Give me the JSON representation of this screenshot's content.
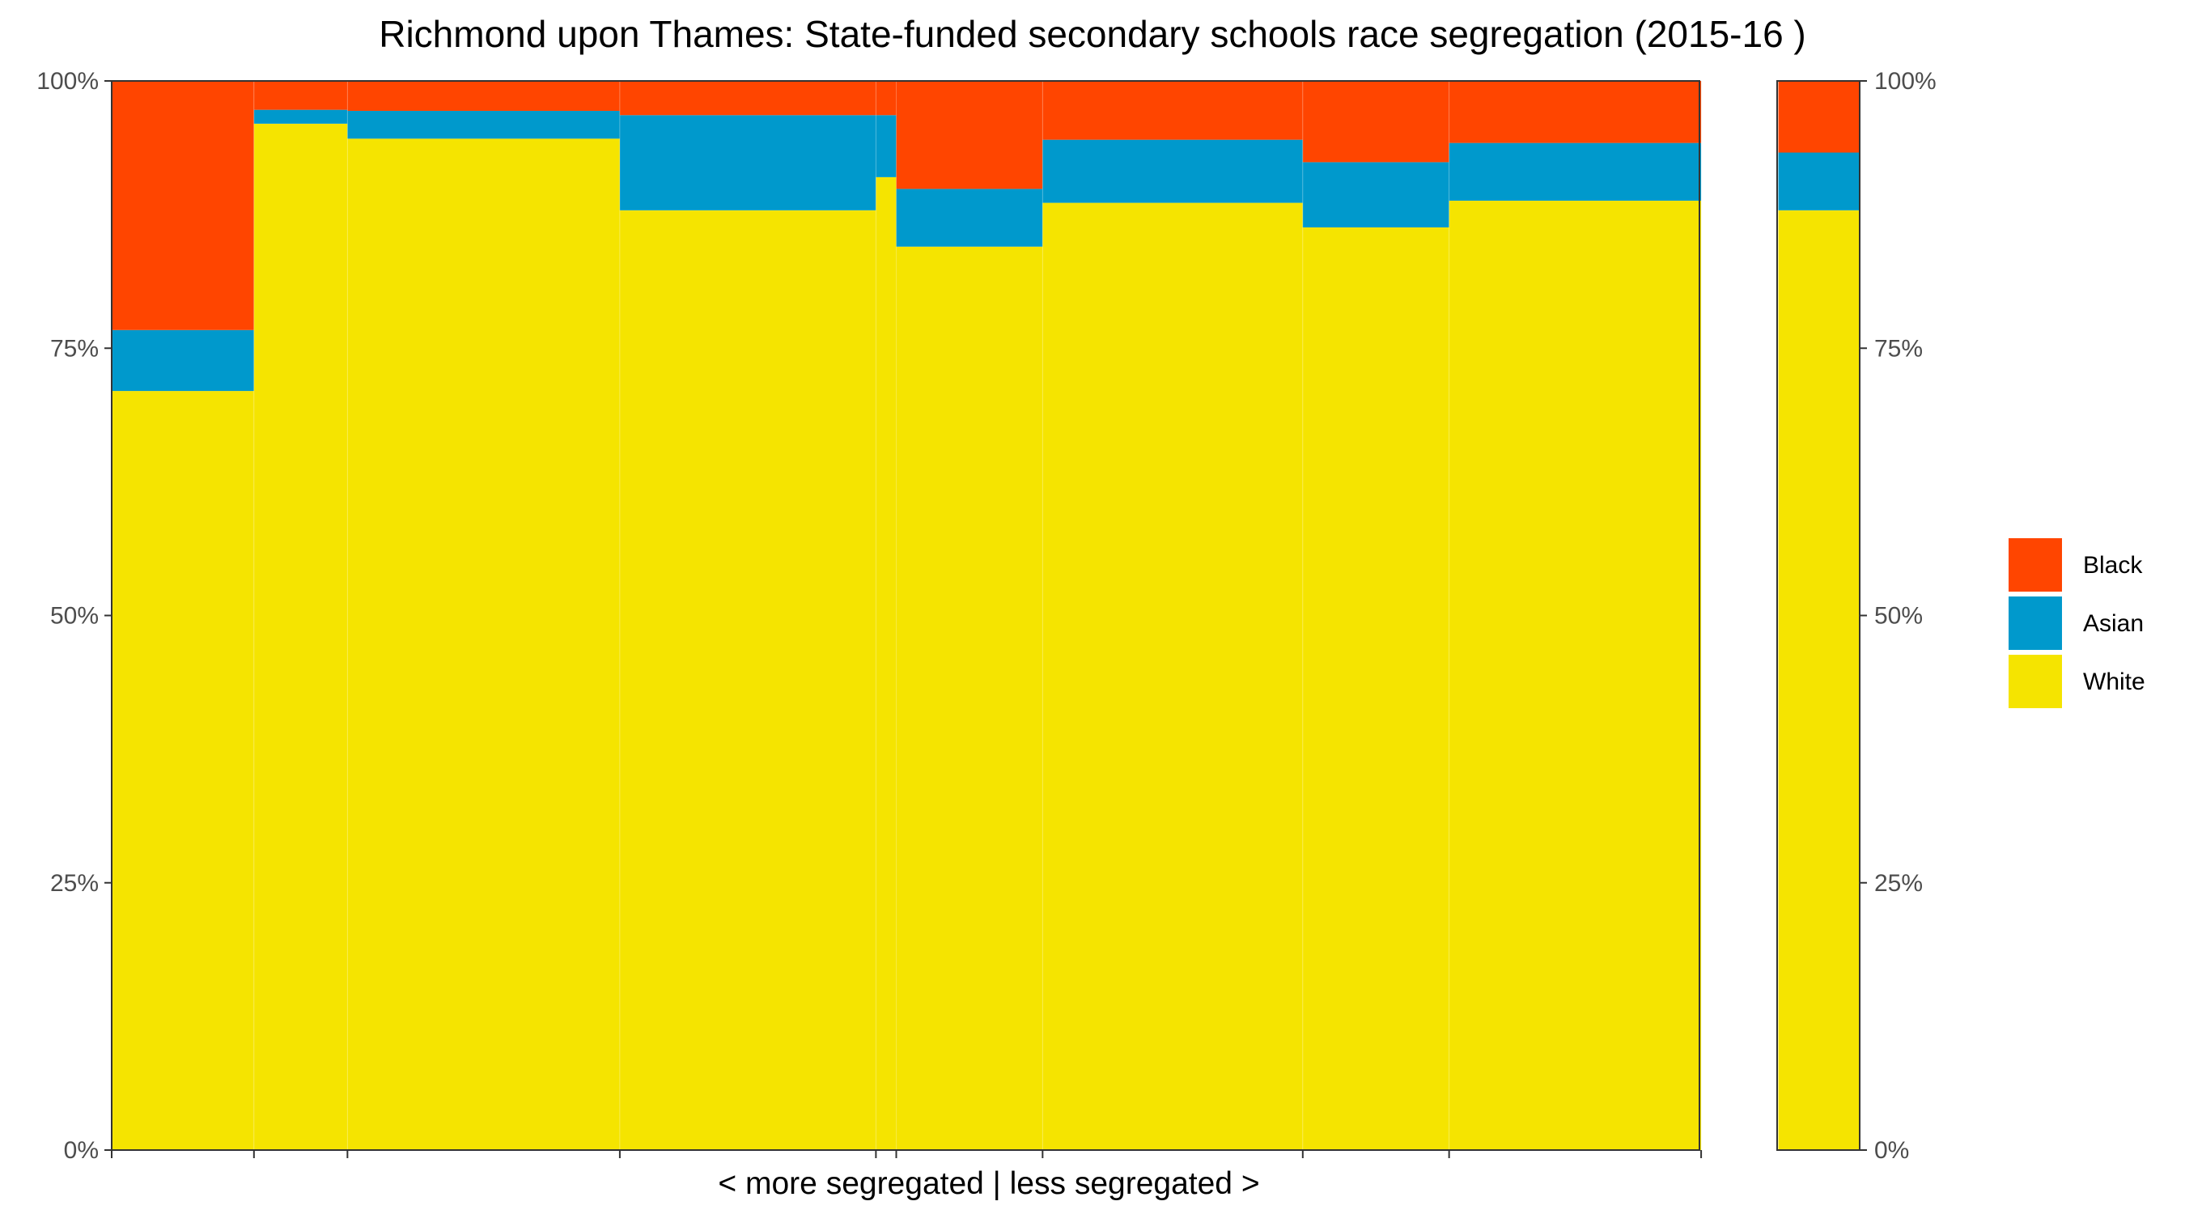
{
  "chart_data": {
    "type": "bar",
    "title": "Richmond upon Thames: State-funded secondary schools race segregation (2015-16 )",
    "xlabel": "< more segregated | less segregated >",
    "ylabel": "",
    "ylim": [
      0,
      100
    ],
    "y_ticks": [
      "0%",
      "25%",
      "50%",
      "75%",
      "100%"
    ],
    "stack_order": [
      "White",
      "Asian",
      "Black"
    ],
    "series": [
      {
        "name": "Black",
        "color": "#ff4500"
      },
      {
        "name": "Asian",
        "color": "#0099cc"
      },
      {
        "name": "White",
        "color": "#f5e400"
      }
    ],
    "segments": [
      {
        "x_start": 0.0,
        "x_end": 17.5,
        "white": 71.0,
        "asian": 5.7,
        "black": 23.3
      },
      {
        "x_start": 17.5,
        "x_end": 29.0,
        "white": 96.0,
        "asian": 1.3,
        "black": 2.7
      },
      {
        "x_start": 29.0,
        "x_end": 62.5,
        "white": 94.6,
        "asian": 2.6,
        "black": 2.8
      },
      {
        "x_start": 62.5,
        "x_end": 94.0,
        "white": 87.9,
        "asian": 8.9,
        "black": 3.2
      },
      {
        "x_start": 94.0,
        "x_end": 96.5,
        "white": 91.0,
        "asian": 5.8,
        "black": 3.2
      },
      {
        "x_start": 96.5,
        "x_end": 114.5,
        "white": 84.5,
        "asian": 5.4,
        "black": 10.1
      },
      {
        "x_start": 114.5,
        "x_end": 146.5,
        "white": 88.6,
        "asian": 5.9,
        "black": 5.5
      },
      {
        "x_start": 146.5,
        "x_end": 164.5,
        "white": 86.3,
        "asian": 6.1,
        "black": 7.6
      },
      {
        "x_start": 164.5,
        "x_end": 195.5,
        "white": 88.8,
        "asian": 5.4,
        "black": 5.8
      }
    ],
    "total": {
      "x_start": 205.0,
      "x_end": 215.0,
      "white": 87.9,
      "asian": 5.4,
      "black": 6.7
    },
    "x_domain": [
      0,
      215
    ],
    "x_tick_positions": [
      0,
      17.5,
      29.0,
      62.5,
      94.0,
      96.5,
      114.5,
      146.5,
      164.5,
      195.5
    ],
    "legend_position": "right"
  }
}
